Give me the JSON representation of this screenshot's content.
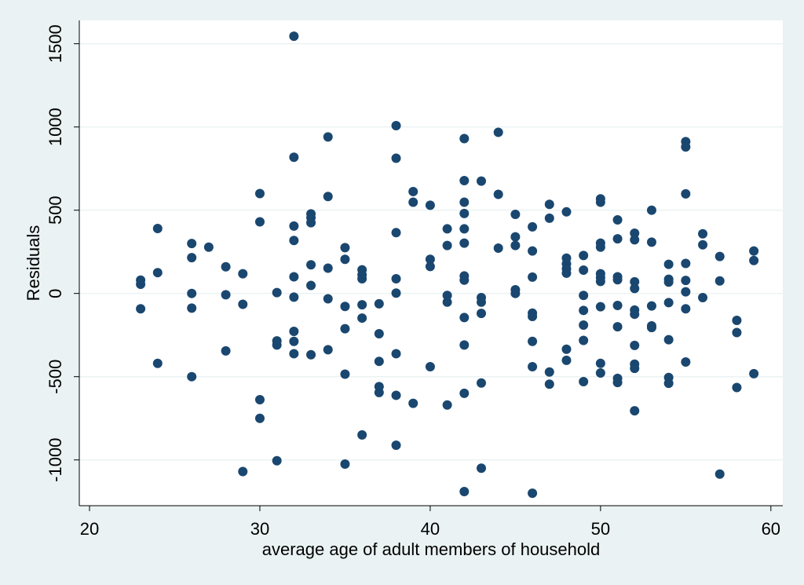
{
  "chart_data": {
    "type": "scatter",
    "title": "",
    "xlabel": "average age of adult members of household",
    "ylabel": "Residuals",
    "xlim": [
      19.4,
      60.7
    ],
    "ylim": [
      -1275,
      1640
    ],
    "xticks": [
      20,
      30,
      40,
      50,
      60
    ],
    "yticks": [
      -1000,
      -500,
      0,
      500,
      1000,
      1500
    ],
    "ytick_labels": [
      "-1000",
      "-500",
      "0",
      "500",
      "1000",
      "1500"
    ],
    "xtick_labels": [
      "20",
      "30",
      "40",
      "50",
      "60"
    ],
    "grid": "horizontal",
    "legend": "none",
    "colors": {
      "marker": "#1a476f",
      "background": "#eaf2f3",
      "plot_area": "#ffffff",
      "grid": "#eaf2f3"
    },
    "points": [
      [
        23,
        80
      ],
      [
        23,
        55
      ],
      [
        23,
        -92
      ],
      [
        24,
        390
      ],
      [
        24,
        125
      ],
      [
        24,
        -420
      ],
      [
        26,
        300
      ],
      [
        26,
        215
      ],
      [
        26,
        0
      ],
      [
        26,
        -88
      ],
      [
        26,
        -500
      ],
      [
        27,
        278
      ],
      [
        28,
        160
      ],
      [
        28,
        -8
      ],
      [
        28,
        -345
      ],
      [
        29,
        118
      ],
      [
        29,
        -65
      ],
      [
        29,
        -1070
      ],
      [
        30,
        600
      ],
      [
        30,
        430
      ],
      [
        30,
        -638
      ],
      [
        30,
        -750
      ],
      [
        31,
        5
      ],
      [
        31,
        -285
      ],
      [
        31,
        -310
      ],
      [
        31,
        -1005
      ],
      [
        32,
        1545
      ],
      [
        32,
        818
      ],
      [
        32,
        405
      ],
      [
        32,
        318
      ],
      [
        32,
        100
      ],
      [
        32,
        -22
      ],
      [
        32,
        -228
      ],
      [
        32,
        -288
      ],
      [
        32,
        -362
      ],
      [
        33,
        478
      ],
      [
        33,
        455
      ],
      [
        33,
        425
      ],
      [
        33,
        172
      ],
      [
        33,
        48
      ],
      [
        33,
        -368
      ],
      [
        34,
        940
      ],
      [
        34,
        582
      ],
      [
        34,
        152
      ],
      [
        34,
        -32
      ],
      [
        34,
        -338
      ],
      [
        35,
        275
      ],
      [
        35,
        205
      ],
      [
        35,
        -78
      ],
      [
        35,
        -212
      ],
      [
        35,
        -485
      ],
      [
        35,
        -1025
      ],
      [
        36,
        142
      ],
      [
        36,
        112
      ],
      [
        36,
        88
      ],
      [
        36,
        -68
      ],
      [
        36,
        -148
      ],
      [
        36,
        -850
      ],
      [
        37,
        -62
      ],
      [
        37,
        -242
      ],
      [
        37,
        -408
      ],
      [
        37,
        -560
      ],
      [
        37,
        -595
      ],
      [
        38,
        1008
      ],
      [
        38,
        812
      ],
      [
        38,
        365
      ],
      [
        38,
        88
      ],
      [
        38,
        2
      ],
      [
        38,
        -362
      ],
      [
        38,
        -612
      ],
      [
        38,
        -912
      ],
      [
        39,
        612
      ],
      [
        39,
        548
      ],
      [
        39,
        -660
      ],
      [
        40,
        530
      ],
      [
        40,
        205
      ],
      [
        40,
        162
      ],
      [
        40,
        -440
      ],
      [
        41,
        388
      ],
      [
        41,
        288
      ],
      [
        41,
        -12
      ],
      [
        41,
        -52
      ],
      [
        41,
        -670
      ],
      [
        42,
        930
      ],
      [
        42,
        678
      ],
      [
        42,
        548
      ],
      [
        42,
        480
      ],
      [
        42,
        388
      ],
      [
        42,
        302
      ],
      [
        42,
        105
      ],
      [
        42,
        80
      ],
      [
        42,
        -145
      ],
      [
        42,
        -310
      ],
      [
        42,
        -600
      ],
      [
        42,
        -1190
      ],
      [
        43,
        675
      ],
      [
        43,
        -25
      ],
      [
        43,
        -52
      ],
      [
        43,
        -120
      ],
      [
        43,
        -538
      ],
      [
        43,
        -1050
      ],
      [
        44,
        968
      ],
      [
        44,
        595
      ],
      [
        44,
        272
      ],
      [
        45,
        475
      ],
      [
        45,
        340
      ],
      [
        45,
        288
      ],
      [
        45,
        22
      ],
      [
        45,
        0
      ],
      [
        46,
        400
      ],
      [
        46,
        255
      ],
      [
        46,
        98
      ],
      [
        46,
        -118
      ],
      [
        46,
        -138
      ],
      [
        46,
        -288
      ],
      [
        46,
        -440
      ],
      [
        46,
        -1200
      ],
      [
        47,
        535
      ],
      [
        47,
        452
      ],
      [
        47,
        -472
      ],
      [
        47,
        -545
      ],
      [
        48,
        490
      ],
      [
        48,
        212
      ],
      [
        48,
        178
      ],
      [
        48,
        148
      ],
      [
        48,
        122
      ],
      [
        48,
        -335
      ],
      [
        48,
        -402
      ],
      [
        49,
        228
      ],
      [
        49,
        140
      ],
      [
        49,
        -12
      ],
      [
        49,
        -102
      ],
      [
        49,
        -190
      ],
      [
        49,
        -282
      ],
      [
        49,
        -530
      ],
      [
        50,
        568
      ],
      [
        50,
        548
      ],
      [
        50,
        302
      ],
      [
        50,
        278
      ],
      [
        50,
        118
      ],
      [
        50,
        95
      ],
      [
        50,
        72
      ],
      [
        50,
        -80
      ],
      [
        50,
        -420
      ],
      [
        50,
        -478
      ],
      [
        51,
        442
      ],
      [
        51,
        328
      ],
      [
        51,
        100
      ],
      [
        51,
        82
      ],
      [
        51,
        -72
      ],
      [
        51,
        -200
      ],
      [
        51,
        -510
      ],
      [
        51,
        -535
      ],
      [
        52,
        362
      ],
      [
        52,
        322
      ],
      [
        52,
        70
      ],
      [
        52,
        30
      ],
      [
        52,
        -100
      ],
      [
        52,
        -125
      ],
      [
        52,
        -312
      ],
      [
        52,
        -425
      ],
      [
        52,
        -450
      ],
      [
        52,
        -705
      ],
      [
        53,
        500
      ],
      [
        53,
        308
      ],
      [
        53,
        -75
      ],
      [
        53,
        -195
      ],
      [
        53,
        -205
      ],
      [
        54,
        175
      ],
      [
        54,
        85
      ],
      [
        54,
        68
      ],
      [
        54,
        -55
      ],
      [
        54,
        -278
      ],
      [
        54,
        -505
      ],
      [
        54,
        -540
      ],
      [
        55,
        912
      ],
      [
        55,
        880
      ],
      [
        55,
        598
      ],
      [
        55,
        180
      ],
      [
        55,
        78
      ],
      [
        55,
        10
      ],
      [
        55,
        -92
      ],
      [
        55,
        -412
      ],
      [
        56,
        358
      ],
      [
        56,
        292
      ],
      [
        56,
        -25
      ],
      [
        57,
        222
      ],
      [
        57,
        75
      ],
      [
        57,
        -1085
      ],
      [
        58,
        -162
      ],
      [
        58,
        -235
      ],
      [
        58,
        -565
      ],
      [
        59,
        255
      ],
      [
        59,
        198
      ],
      [
        59,
        -482
      ]
    ]
  }
}
